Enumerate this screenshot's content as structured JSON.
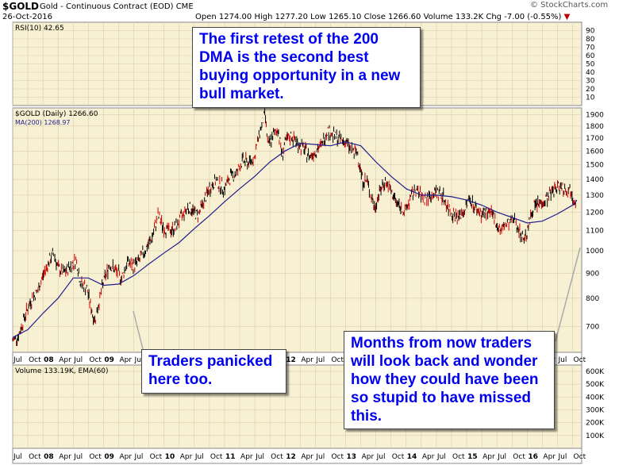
{
  "header": {
    "symbol": "$GOLD",
    "description": "Gold - Continuous Contract (EOD)",
    "exchange": "CME",
    "date": "26-Oct-2016",
    "open_label": "Open",
    "open": "1274.00",
    "high_label": "High",
    "high": "1277.20",
    "low_label": "Low",
    "low": "1265.10",
    "close_label": "Close",
    "close": "1266.60",
    "volume_label": "Volume",
    "volume": "133.2K",
    "chg_label": "Chg",
    "chg": "-7.00 (-0.55%)",
    "watermark": "© StockCharts.com"
  },
  "callouts": {
    "top": "The first retest of the 200\nDMA is the second best\nbuying opportunity in a new\nbull market.",
    "left": "Traders panicked\nhere too.",
    "right": "Months from now traders\nwill look back and wonder\nhow they could have been\nso stupid to have missed\nthis."
  },
  "colors": {
    "panel_bg": "#f8f0d2",
    "grid": "#d6cda8",
    "price": "#000000",
    "ma": "#1e1e8c",
    "callout_text": "#0000ee"
  },
  "chart_data": [
    {
      "type": "line",
      "title": "RSI(10) 42.65",
      "legend": "RSI(10) 42.65",
      "yticks": [
        10,
        20,
        30,
        40,
        50,
        60,
        70,
        80,
        90
      ],
      "ylim": [
        0,
        100
      ]
    },
    {
      "type": "line",
      "title": "$GOLD (Daily) 1266.60",
      "yscale": "log",
      "ylim": [
        620,
        1960
      ],
      "xlim": [
        2007.5,
        2016.9
      ],
      "yticks": [
        700,
        800,
        900,
        1000,
        1100,
        1200,
        1300,
        1400,
        1500,
        1600,
        1700,
        1800,
        1900
      ],
      "series": [
        {
          "name": "$GOLD (Daily) 1266.60",
          "style": "ohlc",
          "points": [
            [
              2007.5,
              655
            ],
            [
              2007.6,
              672
            ],
            [
              2007.7,
              735
            ],
            [
              2007.8,
              790
            ],
            [
              2007.92,
              830
            ],
            [
              2008.0,
              890
            ],
            [
              2008.1,
              950
            ],
            [
              2008.18,
              990
            ],
            [
              2008.25,
              920
            ],
            [
              2008.35,
              900
            ],
            [
              2008.45,
              930
            ],
            [
              2008.55,
              960
            ],
            [
              2008.62,
              860
            ],
            [
              2008.72,
              840
            ],
            [
              2008.8,
              760
            ],
            [
              2008.85,
              720
            ],
            [
              2008.92,
              780
            ],
            [
              2009.0,
              860
            ],
            [
              2009.1,
              940
            ],
            [
              2009.2,
              910
            ],
            [
              2009.3,
              880
            ],
            [
              2009.4,
              950
            ],
            [
              2009.5,
              930
            ],
            [
              2009.6,
              960
            ],
            [
              2009.7,
              1010
            ],
            [
              2009.8,
              1060
            ],
            [
              2009.9,
              1180
            ],
            [
              2010.0,
              1110
            ],
            [
              2010.1,
              1100
            ],
            [
              2010.2,
              1120
            ],
            [
              2010.3,
              1180
            ],
            [
              2010.4,
              1230
            ],
            [
              2010.5,
              1200
            ],
            [
              2010.55,
              1180
            ],
            [
              2010.65,
              1250
            ],
            [
              2010.75,
              1340
            ],
            [
              2010.85,
              1390
            ],
            [
              2011.0,
              1340
            ],
            [
              2011.1,
              1420
            ],
            [
              2011.2,
              1440
            ],
            [
              2011.3,
              1530
            ],
            [
              2011.4,
              1510
            ],
            [
              2011.5,
              1560
            ],
            [
              2011.58,
              1750
            ],
            [
              2011.67,
              1900
            ],
            [
              2011.72,
              1630
            ],
            [
              2011.78,
              1700
            ],
            [
              2011.88,
              1780
            ],
            [
              2011.95,
              1570
            ],
            [
              2012.0,
              1660
            ],
            [
              2012.1,
              1720
            ],
            [
              2012.2,
              1660
            ],
            [
              2012.3,
              1620
            ],
            [
              2012.4,
              1560
            ],
            [
              2012.5,
              1600
            ],
            [
              2012.6,
              1640
            ],
            [
              2012.7,
              1770
            ],
            [
              2012.8,
              1720
            ],
            [
              2012.9,
              1690
            ],
            [
              2013.0,
              1670
            ],
            [
              2013.1,
              1600
            ],
            [
              2013.2,
              1580
            ],
            [
              2013.28,
              1390
            ],
            [
              2013.35,
              1390
            ],
            [
              2013.48,
              1220
            ],
            [
              2013.55,
              1310
            ],
            [
              2013.65,
              1390
            ],
            [
              2013.75,
              1320
            ],
            [
              2013.85,
              1250
            ],
            [
              2013.98,
              1200
            ],
            [
              2014.05,
              1260
            ],
            [
              2014.15,
              1340
            ],
            [
              2014.25,
              1290
            ],
            [
              2014.35,
              1280
            ],
            [
              2014.5,
              1320
            ],
            [
              2014.6,
              1300
            ],
            [
              2014.7,
              1220
            ],
            [
              2014.85,
              1170
            ],
            [
              2014.95,
              1200
            ],
            [
              2015.05,
              1280
            ],
            [
              2015.15,
              1220
            ],
            [
              2015.25,
              1190
            ],
            [
              2015.35,
              1200
            ],
            [
              2015.45,
              1170
            ],
            [
              2015.55,
              1100
            ],
            [
              2015.65,
              1130
            ],
            [
              2015.8,
              1160
            ],
            [
              2015.92,
              1060
            ],
            [
              2016.0,
              1090
            ],
            [
              2016.1,
              1230
            ],
            [
              2016.2,
              1250
            ],
            [
              2016.3,
              1270
            ],
            [
              2016.45,
              1340
            ],
            [
              2016.55,
              1360
            ],
            [
              2016.65,
              1330
            ],
            [
              2016.72,
              1330
            ],
            [
              2016.8,
              1265
            ]
          ]
        },
        {
          "name": "MA(200) 1268.97",
          "style": "line",
          "points": [
            [
              2007.5,
              665
            ],
            [
              2007.75,
              690
            ],
            [
              2008.0,
              745
            ],
            [
              2008.25,
              800
            ],
            [
              2008.5,
              880
            ],
            [
              2008.75,
              880
            ],
            [
              2009.0,
              850
            ],
            [
              2009.25,
              855
            ],
            [
              2009.5,
              890
            ],
            [
              2009.75,
              940
            ],
            [
              2010.0,
              990
            ],
            [
              2010.25,
              1040
            ],
            [
              2010.5,
              1110
            ],
            [
              2010.75,
              1180
            ],
            [
              2011.0,
              1260
            ],
            [
              2011.25,
              1340
            ],
            [
              2011.5,
              1420
            ],
            [
              2011.75,
              1520
            ],
            [
              2012.0,
              1600
            ],
            [
              2012.25,
              1660
            ],
            [
              2012.5,
              1650
            ],
            [
              2012.75,
              1640
            ],
            [
              2013.0,
              1670
            ],
            [
              2013.25,
              1640
            ],
            [
              2013.5,
              1520
            ],
            [
              2013.75,
              1420
            ],
            [
              2014.0,
              1340
            ],
            [
              2014.25,
              1300
            ],
            [
              2014.5,
              1300
            ],
            [
              2014.75,
              1290
            ],
            [
              2015.0,
              1270
            ],
            [
              2015.25,
              1240
            ],
            [
              2015.5,
              1200
            ],
            [
              2015.75,
              1170
            ],
            [
              2016.0,
              1140
            ],
            [
              2016.25,
              1150
            ],
            [
              2016.5,
              1190
            ],
            [
              2016.75,
              1240
            ],
            [
              2016.82,
              1269
            ]
          ]
        }
      ]
    },
    {
      "type": "bar",
      "title": "Volume 133.19K, EMA(60)",
      "legend": "Volume 133.19K, EMA(60)",
      "yticks": [
        "100K",
        "200K",
        "300K",
        "400K",
        "500K",
        "600K"
      ],
      "ylim": [
        0,
        650
      ]
    }
  ],
  "x_labels_top": [
    "Jul",
    "Oct",
    "08",
    "Apr",
    "Jul",
    "Oct",
    "09",
    "Apr",
    "Jul",
    "Oct",
    "10",
    "Apr",
    "Jul",
    "Oct",
    "11",
    "Apr",
    "Jul",
    "Oct",
    "12",
    "Apr",
    "Jul",
    "Oct",
    "13",
    "Apr",
    "Jul",
    "Oct",
    "14",
    "Apr",
    "Jul",
    "Oct",
    "15",
    "Apr",
    "Jul",
    "Oct",
    "16",
    "Apr",
    "Jul",
    "Oct"
  ],
  "x_labels_bottom": [
    "Jul",
    "Oct",
    "08",
    "Apr",
    "Jul",
    "Oct",
    "09",
    "Apr",
    "Jul",
    "Oct",
    "10",
    "Apr",
    "Jul",
    "Oct",
    "11",
    "Apr",
    "Jul",
    "Oct",
    "12",
    "Apr",
    "Jul",
    "Oct",
    "13",
    "Apr",
    "Jul",
    "Oct",
    "14",
    "Apr",
    "Jul",
    "Oct",
    "15",
    "Apr",
    "Jul",
    "Oct",
    "16",
    "Apr",
    "Jul",
    "Oct"
  ]
}
